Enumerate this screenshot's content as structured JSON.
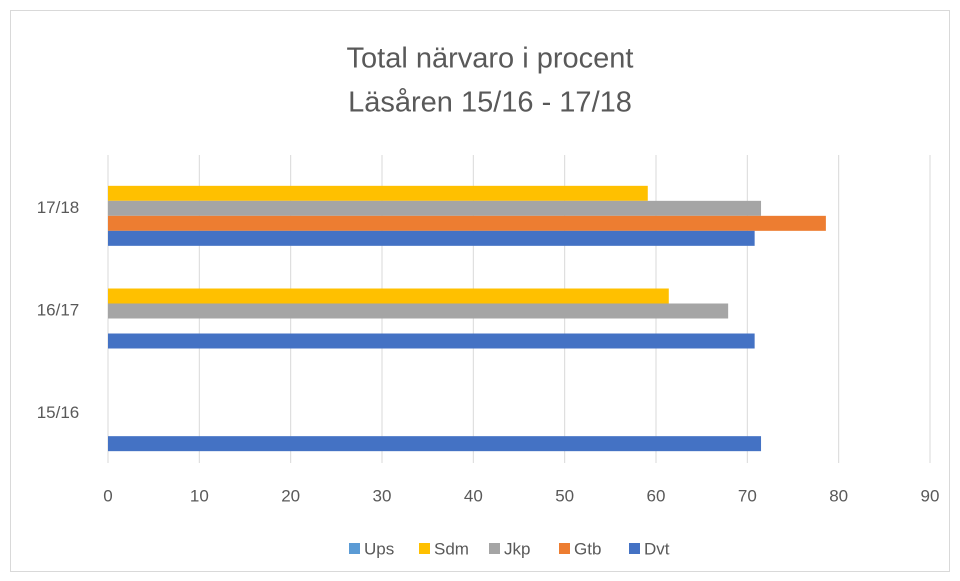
{
  "chart_data": {
    "type": "hbar",
    "title": "Total närvaro i procent",
    "subtitle": "Läsåren 15/16 - 17/18",
    "categories": [
      "15/16",
      "16/17",
      "17/18"
    ],
    "series": [
      {
        "name": "Ups",
        "color": "#5b9bd5",
        "values": [
          null,
          null,
          null
        ]
      },
      {
        "name": "Sdm",
        "color": "#ffc000",
        "values": [
          null,
          61.4,
          59.1
        ]
      },
      {
        "name": "Jkp",
        "color": "#a5a5a5",
        "values": [
          null,
          67.9,
          71.5
        ]
      },
      {
        "name": "Gtb",
        "color": "#ed7d31",
        "values": [
          null,
          null,
          78.6
        ]
      },
      {
        "name": "Dvt",
        "color": "#4472c4",
        "values": [
          71.5,
          70.8,
          70.8
        ]
      }
    ],
    "xlim": [
      0,
      90
    ],
    "xticks": [
      0,
      10,
      20,
      30,
      40,
      50,
      60,
      70,
      80,
      90
    ],
    "grid": true,
    "legend": "bottom"
  }
}
